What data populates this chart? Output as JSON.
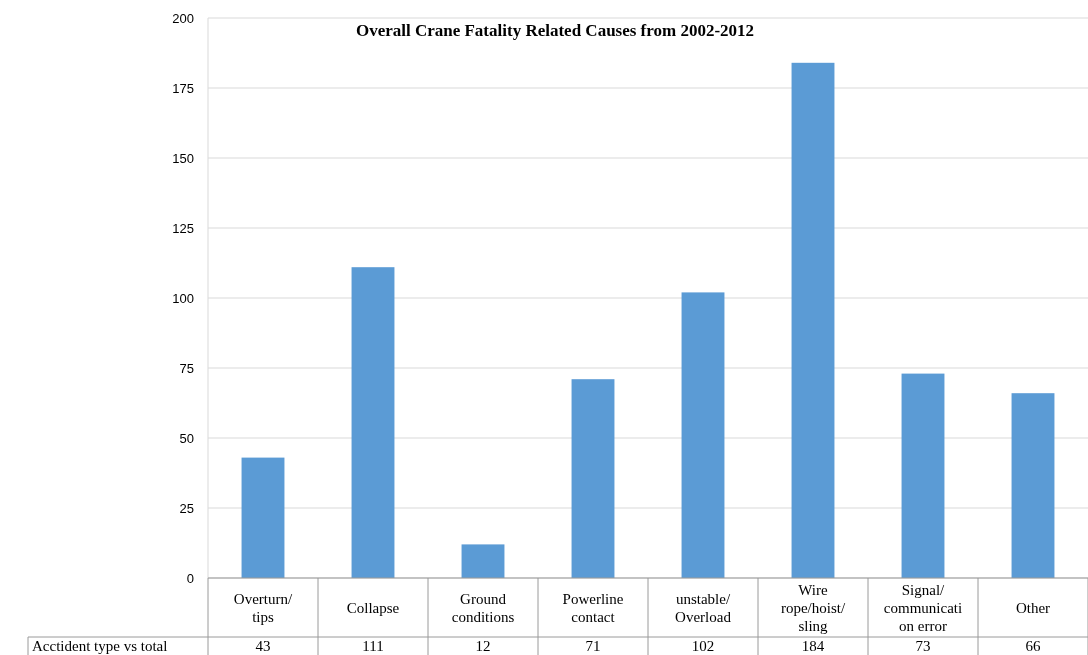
{
  "chart_data": {
    "type": "bar",
    "title": "Overall Crane Fatality Related Causes from 2002-2012",
    "categories": [
      "Overturn/\ntips",
      "Collapse",
      "Ground\nconditions",
      "Powerline\ncontact",
      "unstable/\nOverload",
      "Wire\nrope/hoist/\nsling",
      "Signal/\ncommunicati\non error",
      "Other"
    ],
    "series": [
      {
        "name": "Acctident type vs total",
        "color": "#5b9bd5",
        "values": [
          43,
          111,
          12,
          71,
          102,
          184,
          73,
          66
        ]
      }
    ],
    "ylim": [
      0,
      200
    ],
    "yticks": [
      0,
      25,
      50,
      75,
      100,
      125,
      150,
      175,
      200
    ],
    "grid": "y",
    "data_labels": true
  }
}
